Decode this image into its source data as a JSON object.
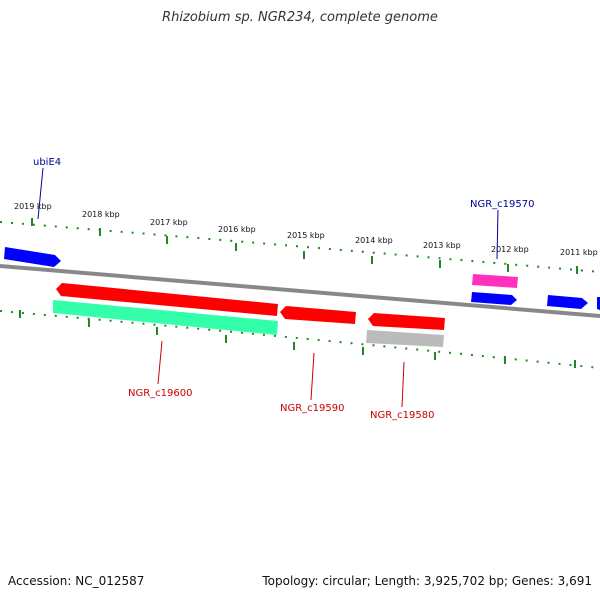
{
  "title": "Rhizobium sp. NGR234, complete genome",
  "footer": {
    "accession": "Accession: NC_012587",
    "summary": "Topology: circular; Length: 3,925,702 bp; Genes: 3,691"
  },
  "kbp_labels": [
    "2019 kbp",
    "2018 kbp",
    "2017 kbp",
    "2016 kbp",
    "2015 kbp",
    "2014 kbp",
    "2013 kbp",
    "2012 kbp",
    "2011 kbp"
  ],
  "gene_labels": {
    "ubiE4": "ubiE4",
    "c19570": "NGR_c19570",
    "c19600": "NGR_c19600",
    "c19590": "NGR_c19590",
    "c19580": "NGR_c19580"
  },
  "colors": {
    "cds_blue": "#0000ff",
    "cds_red": "#ff0000",
    "rna_pink": "#ff33bb",
    "gene_green": "#33ffaa",
    "pseudo_gray": "#bbbbbb",
    "backbone": "#888888",
    "tick_green": "#228822",
    "label_blue": "#000099",
    "label_red": "#cc0000"
  }
}
